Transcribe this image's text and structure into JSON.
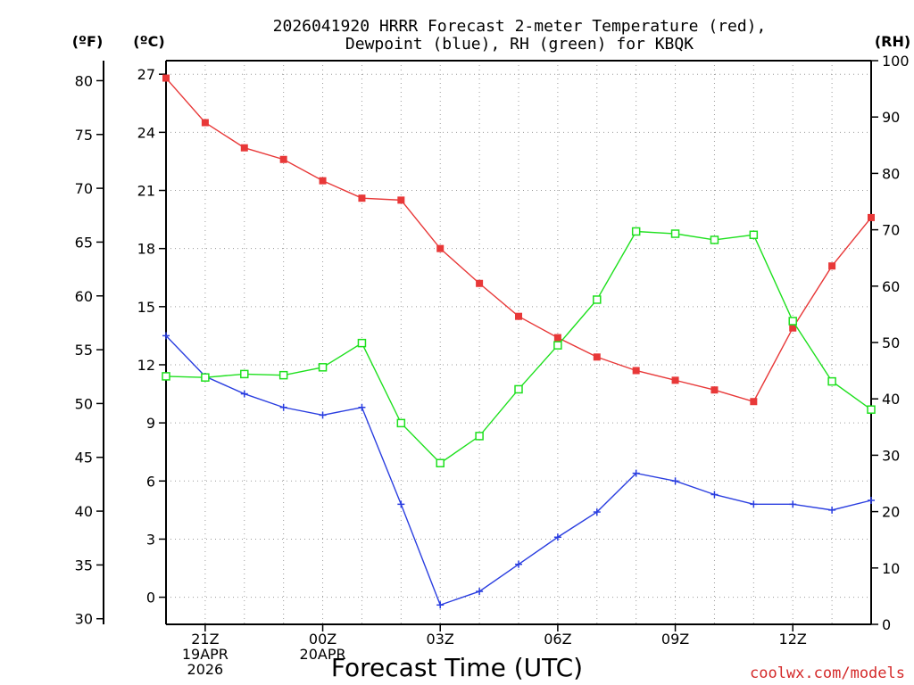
{
  "chart_data": {
    "type": "line",
    "title": [
      "2026041920 HRRR Forecast 2-meter Temperature (red),",
      "Dewpoint (blue), RH (green) for KBQK"
    ],
    "xlabel": "Forecast Time (UTC)",
    "credit": "coolwx.com/models",
    "unit_labels": {
      "left_f": "(ºF)",
      "left_c": "(ºC)",
      "right": "(RH)"
    },
    "x": [
      0,
      1,
      2,
      3,
      4,
      5,
      6,
      7,
      8,
      9,
      10,
      11,
      12,
      13,
      14,
      15,
      16,
      17,
      18
    ],
    "x_ticks": [
      {
        "x": 1,
        "lines": [
          "21Z",
          "19APR",
          "2026"
        ]
      },
      {
        "x": 4,
        "lines": [
          "00Z",
          "20APR"
        ]
      },
      {
        "x": 7,
        "lines": [
          "03Z"
        ]
      },
      {
        "x": 10,
        "lines": [
          "06Z"
        ]
      },
      {
        "x": 13,
        "lines": [
          "09Z"
        ]
      },
      {
        "x": 16,
        "lines": [
          "12Z"
        ]
      }
    ],
    "celsius_axis": {
      "range": [
        -1.4,
        27.7
      ],
      "ticks": [
        0,
        3,
        6,
        9,
        12,
        15,
        18,
        21,
        24,
        27
      ]
    },
    "fahrenheit_axis": {
      "ticks": [
        30,
        35,
        40,
        45,
        50,
        55,
        60,
        65,
        70,
        75,
        80
      ]
    },
    "rh_axis": {
      "range": [
        0,
        100
      ],
      "ticks": [
        0,
        10,
        20,
        30,
        40,
        50,
        60,
        70,
        80,
        90,
        100
      ]
    },
    "series": [
      {
        "name": "Temperature",
        "axis": "celsius",
        "color": "#e83838",
        "marker": "filled-square",
        "values": [
          26.8,
          24.5,
          23.2,
          22.6,
          21.5,
          20.6,
          20.5,
          18.0,
          16.2,
          14.5,
          13.4,
          12.4,
          11.7,
          11.2,
          10.7,
          10.1,
          13.9,
          17.1,
          19.6
        ]
      },
      {
        "name": "Dewpoint",
        "axis": "celsius",
        "color": "#2a3ee0",
        "marker": "plus",
        "values": [
          13.5,
          11.4,
          10.5,
          9.8,
          9.4,
          9.8,
          4.8,
          -0.4,
          0.3,
          1.7,
          3.1,
          4.4,
          6.4,
          6.0,
          5.3,
          4.8,
          4.8,
          4.5,
          5.0
        ]
      },
      {
        "name": "RH",
        "axis": "rh",
        "color": "#1ee01e",
        "marker": "open-square",
        "values": [
          44.0,
          43.8,
          44.4,
          44.2,
          45.6,
          49.9,
          35.7,
          28.6,
          33.4,
          41.7,
          49.5,
          57.6,
          69.7,
          69.3,
          68.2,
          69.1,
          53.8,
          43.1,
          38.1
        ]
      }
    ]
  }
}
